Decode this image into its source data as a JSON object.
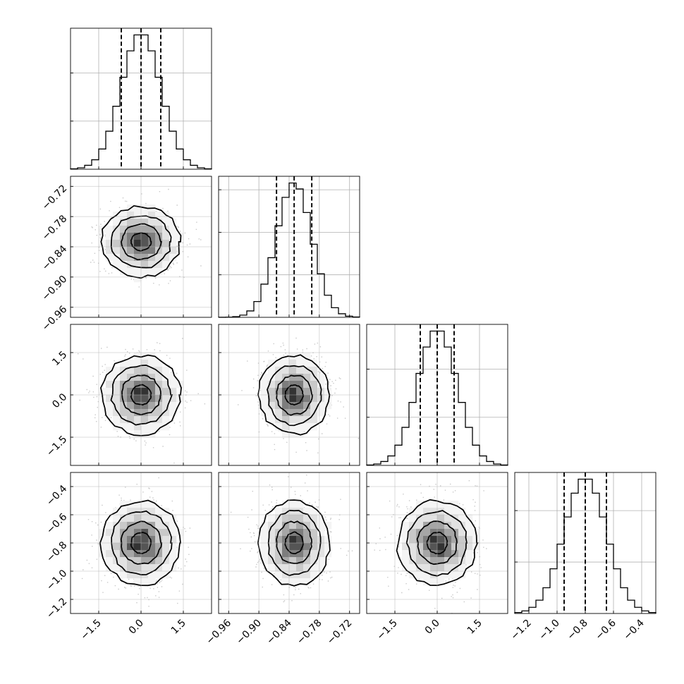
{
  "chart_data": {
    "type": "corner",
    "parameters": [
      {
        "range": [
          -2.5,
          2.5
        ],
        "ticks": [
          -1.5,
          0.0,
          1.5
        ],
        "tick_labels": [
          "−1.5",
          "0.0",
          "1.5"
        ],
        "mean": 0.0,
        "sd": 0.7,
        "quantiles": [
          -0.7,
          0.0,
          0.7
        ]
      },
      {
        "range": [
          -0.98,
          -0.7
        ],
        "ticks": [
          -0.96,
          -0.9,
          -0.84,
          -0.78,
          -0.72
        ],
        "tick_labels": [
          "−0.96",
          "−0.90",
          "−0.84",
          "−0.78",
          "−0.72"
        ],
        "mean": -0.83,
        "sd": 0.035,
        "quantiles": [
          -0.865,
          -0.83,
          -0.795
        ]
      },
      {
        "range": [
          -2.5,
          2.5
        ],
        "ticks": [
          -1.5,
          0.0,
          1.5
        ],
        "tick_labels": [
          "−1.5",
          "0.0",
          "1.5"
        ],
        "mean": 0.0,
        "sd": 0.7,
        "quantiles": [
          -0.6,
          0.0,
          0.6
        ]
      },
      {
        "range": [
          -1.3,
          -0.3
        ],
        "ticks": [
          -1.2,
          -1.0,
          -0.8,
          -0.6,
          -0.4
        ],
        "tick_labels": [
          "−1.2",
          "−1.0",
          "−0.8",
          "−0.6",
          "−0.4"
        ],
        "mean": -0.8,
        "sd": 0.15,
        "quantiles": [
          -0.95,
          -0.8,
          -0.65
        ]
      }
    ],
    "grid": true,
    "contour_levels_sigma": [
      0.5,
      1.0,
      1.5,
      2.0
    ],
    "xlabel": "",
    "ylabel": "",
    "title": ""
  }
}
